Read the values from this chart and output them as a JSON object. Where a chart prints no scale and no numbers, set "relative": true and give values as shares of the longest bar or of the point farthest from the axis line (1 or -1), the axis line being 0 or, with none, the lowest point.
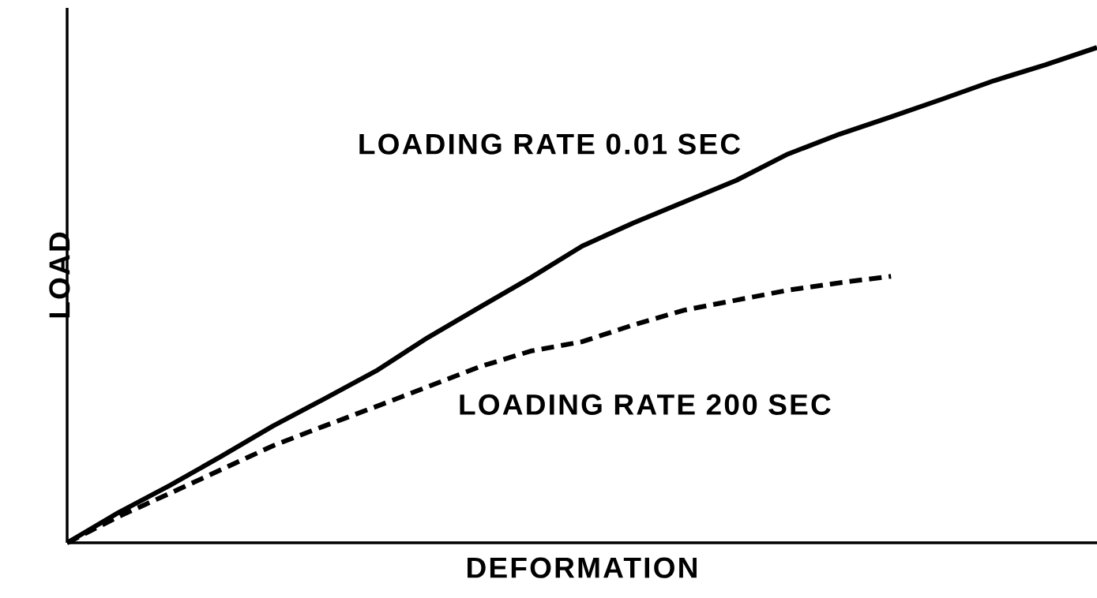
{
  "chart_data": {
    "type": "line",
    "xlabel": "DEFORMATION",
    "ylabel": "LOAD",
    "relative": true,
    "marker": "none",
    "categories": [
      null,
      null,
      null,
      null,
      null,
      null,
      null,
      null,
      null,
      null,
      null,
      null,
      null,
      null,
      null,
      null,
      null,
      null,
      null,
      null,
      null
    ],
    "series": [
      {
        "name": "LOADING RATE 0.01 SEC",
        "color": "#000000",
        "line_style": "solid",
        "values": [
          0,
          0.061,
          0.116,
          0.175,
          0.236,
          0.291,
          0.347,
          0.414,
          0.475,
          0.535,
          0.599,
          0.646,
          0.689,
          0.732,
          0.785,
          0.825,
          0.86,
          0.896,
          0.933,
          0.965,
          1.0
        ]
      },
      {
        "name": "LOADING RATE 200 SEC",
        "color": "#000000",
        "line_style": "dashed",
        "values": [
          0,
          0.053,
          0.1,
          0.148,
          0.196,
          0.236,
          0.275,
          0.315,
          0.355,
          0.387,
          0.406,
          0.44,
          0.47,
          0.49,
          0.51,
          0.525,
          0.538,
          null,
          null,
          null,
          null
        ]
      }
    ]
  }
}
